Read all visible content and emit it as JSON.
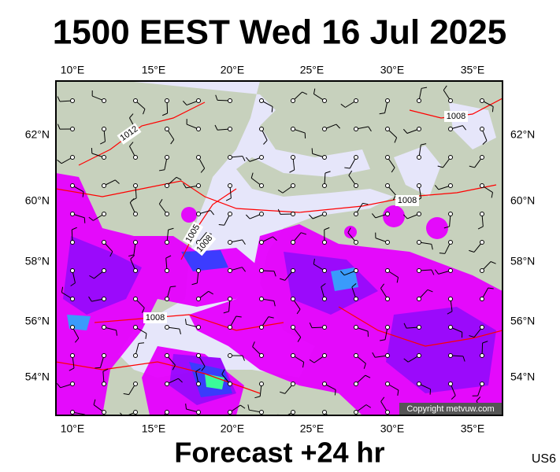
{
  "title": "1500 EEST Wed 16 Jul 2025",
  "footer": "Forecast +24 hr",
  "code": "US6",
  "copyright": "Copyright metvuw.com",
  "lon_labels": [
    "10°E",
    "15°E",
    "20°E",
    "25°E",
    "30°E",
    "35°E"
  ],
  "lat_labels": [
    "62°N",
    "60°N",
    "58°N",
    "56°N",
    "54°N"
  ],
  "isobar_labels": [
    "1012",
    "1008",
    "1008",
    "1005",
    "1008",
    "1008"
  ]
}
